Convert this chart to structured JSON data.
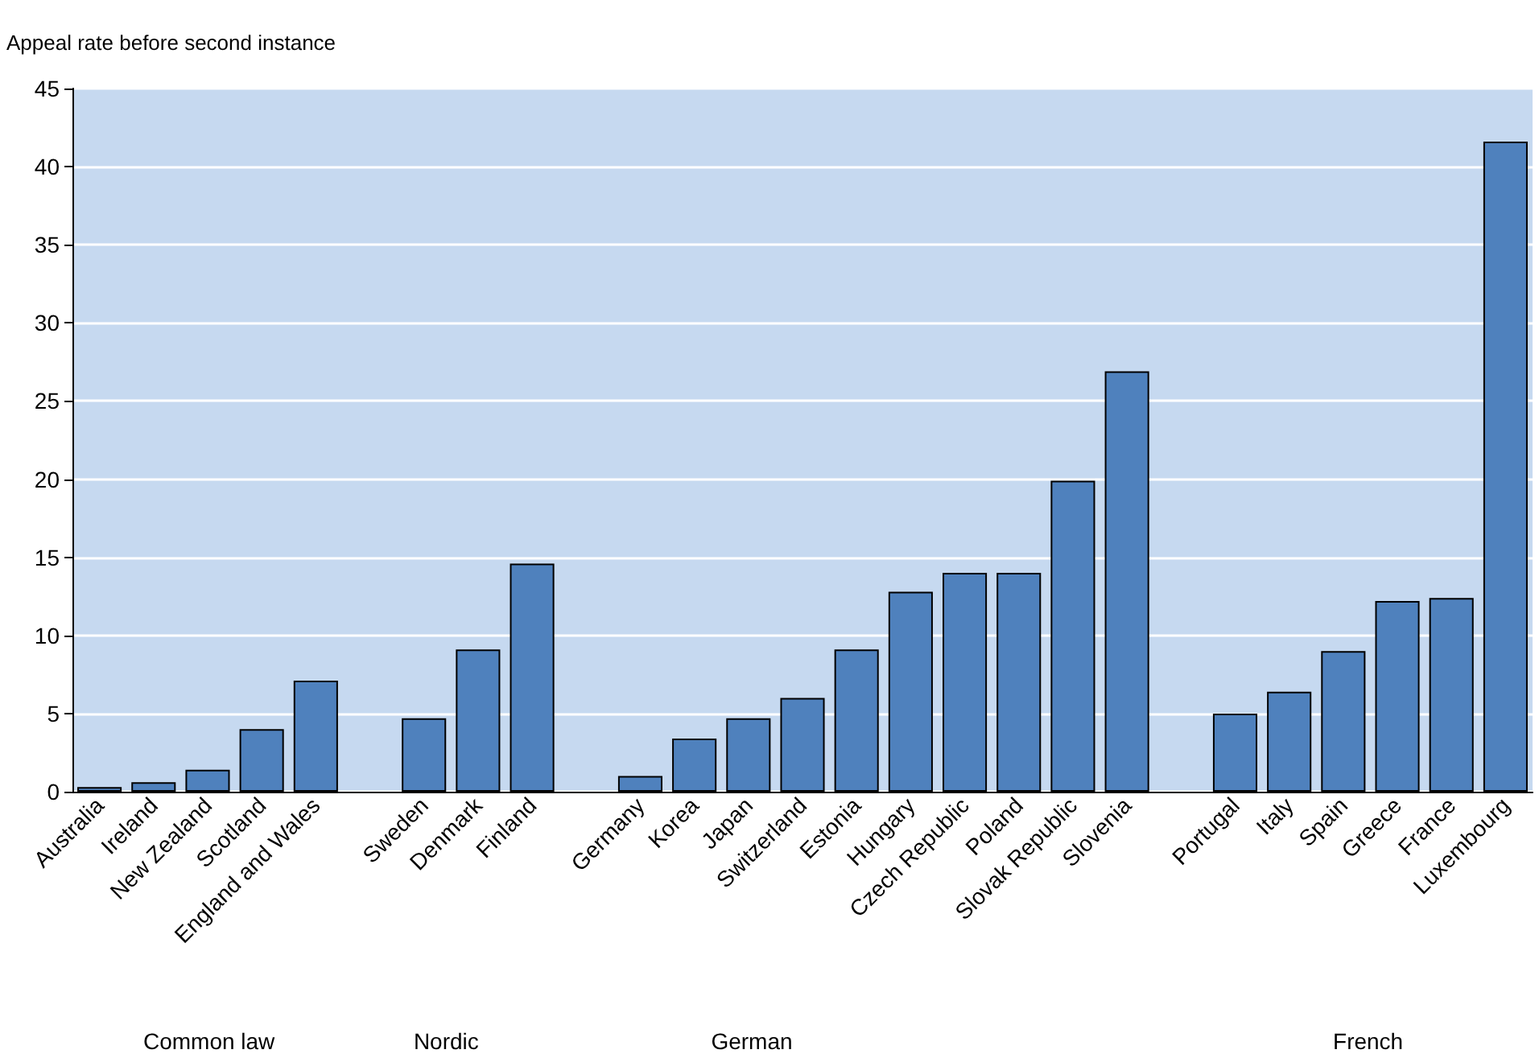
{
  "chart_data": {
    "type": "bar",
    "ylabel": "Appeal rate before second instance",
    "categories": [
      "Australia",
      "Ireland",
      "New Zealand",
      "Scotland",
      "England and Wales",
      null,
      "Sweden",
      "Denmark",
      "Finland",
      null,
      "Germany",
      "Korea",
      "Japan",
      "Switzerland",
      "Estonia",
      "Hungary",
      "Czech Republic",
      "Poland",
      "Slovak Republic",
      "Slovenia",
      null,
      "Portugal",
      "Italy",
      "Spain",
      "Greece",
      "France",
      "Luxembourg"
    ],
    "values": [
      0.3,
      0.6,
      1.4,
      4.0,
      7.1,
      null,
      4.7,
      9.1,
      14.6,
      null,
      1.0,
      3.4,
      4.7,
      6.0,
      9.1,
      12.8,
      14.0,
      14.0,
      19.9,
      26.9,
      null,
      5.0,
      6.4,
      9.0,
      12.2,
      12.4,
      41.6
    ],
    "color": "#4f81bd",
    "ylim": [
      0,
      45
    ],
    "yticks": [
      0,
      5,
      10,
      15,
      20,
      25,
      30,
      35,
      40,
      45
    ],
    "grid": "y",
    "annotations": [
      "Common law",
      "Nordic",
      "German",
      "French"
    ]
  }
}
